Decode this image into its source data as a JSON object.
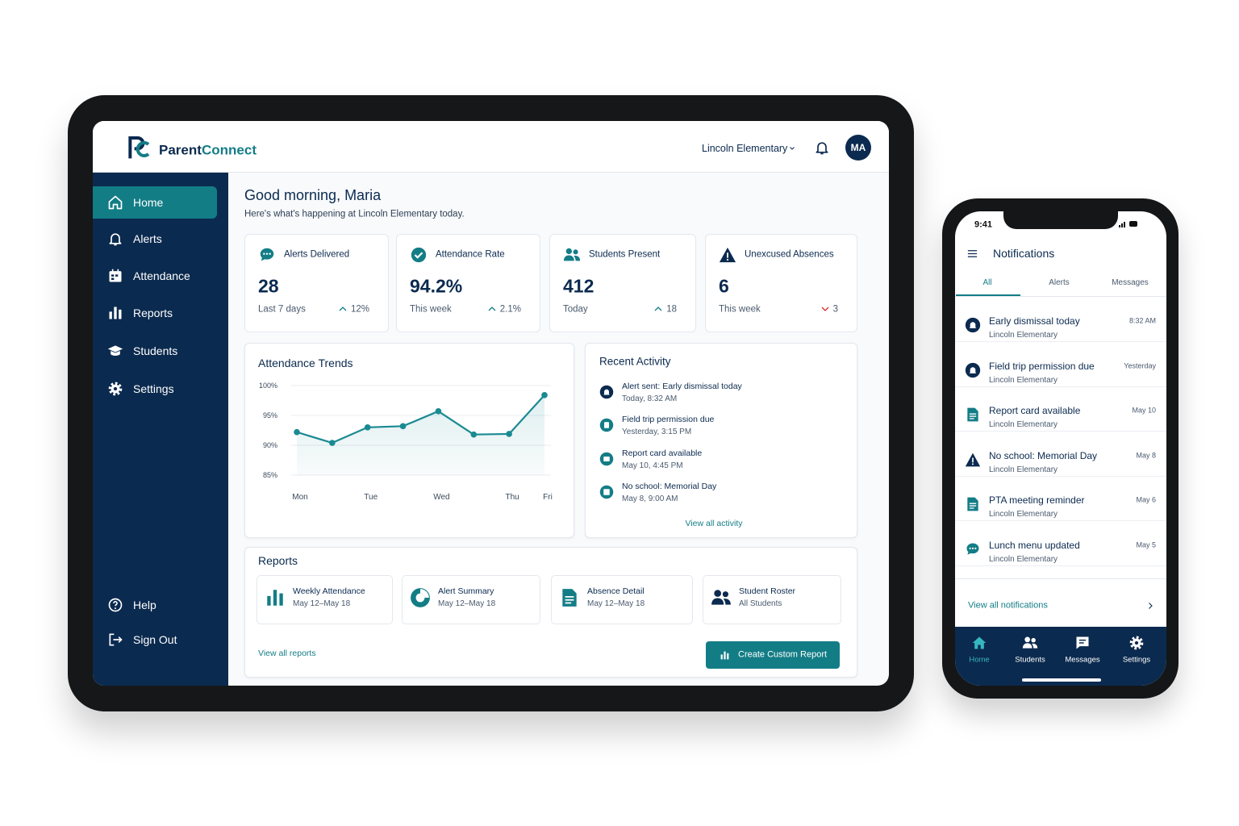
{
  "tablet": {
    "brand": {
      "first": "Parent",
      "second": "Connect"
    },
    "school_selector": "Lincoln Elementary",
    "avatar": "MA",
    "nav": [
      "Home",
      "Alerts",
      "Attendance",
      "Reports",
      "Students",
      "Settings"
    ],
    "nav_bottom": [
      "Help",
      "Sign Out"
    ],
    "greeting": "Good morning, Maria",
    "subtitle": "Here's what's happening at Lincoln Elementary today.",
    "stats": [
      {
        "label": "Alerts Delivered",
        "value": "28",
        "period": "Last 7 days",
        "change": "12%",
        "trend": "up"
      },
      {
        "label": "Attendance Rate",
        "value": "94.2%",
        "period": "This week",
        "change": "2.1%",
        "trend": "up"
      },
      {
        "label": "Students Present",
        "value": "412",
        "period": "Today",
        "change": "18",
        "trend": "up"
      },
      {
        "label": "Unexcused Absences",
        "value": "6",
        "period": "This week",
        "change": "3",
        "trend": "down"
      }
    ],
    "chart_data": {
      "type": "line",
      "title": "Attendance Trends",
      "categories": [
        "Mon",
        null,
        "Tue",
        null,
        "Wed",
        null,
        "Thu",
        "Fri"
      ],
      "values": [
        92.2,
        90.4,
        93.0,
        93.2,
        95.7,
        91.8,
        91.9,
        98.4
      ],
      "color": "#1a8a92",
      "ylim": [
        85,
        100
      ],
      "yticks": [
        {
          "value": 85,
          "label": "85%"
        },
        {
          "value": 90,
          "label": "90%"
        },
        {
          "value": 95,
          "label": "95%"
        },
        {
          "value": 100,
          "label": "100%"
        }
      ],
      "grid": true
    },
    "activity": {
      "title": "Recent Activity",
      "items": [
        {
          "title": "Alert sent: Early dismissal today",
          "time": "Today, 8:32 AM"
        },
        {
          "title": "Field trip permission due",
          "time": "Yesterday, 3:15 PM"
        },
        {
          "title": "Report card available",
          "time": "May 10, 4:45 PM"
        },
        {
          "title": "No school: Memorial Day",
          "time": "May 8, 9:00 AM"
        }
      ],
      "link": "View all activity"
    },
    "reports": {
      "title": "Reports",
      "items": [
        {
          "name": "Weekly Attendance",
          "detail": "May 12–May 18"
        },
        {
          "name": "Alert Summary",
          "detail": "May 12–May 18"
        },
        {
          "name": "Absence Detail",
          "detail": "May 12–May 18"
        },
        {
          "name": "Student Roster",
          "detail": "All Students"
        }
      ],
      "link": "View all reports",
      "button": "Create Custom Report"
    }
  },
  "phone": {
    "clock": "9:41",
    "title": "Notifications",
    "tabs": [
      "All",
      "Alerts",
      "Messages"
    ],
    "notifications": [
      {
        "title": "Early dismissal today",
        "source": "Lincoln Elementary",
        "time": "8:32 AM"
      },
      {
        "title": "Field trip permission due",
        "source": "Lincoln Elementary",
        "time": "Yesterday"
      },
      {
        "title": "Report card available",
        "source": "Lincoln Elementary",
        "time": "May 10"
      },
      {
        "title": "No school: Memorial Day",
        "source": "Lincoln Elementary",
        "time": "May 8"
      },
      {
        "title": "PTA meeting reminder",
        "source": "Lincoln Elementary",
        "time": "May 6"
      },
      {
        "title": "Lunch menu updated",
        "source": "Lincoln Elementary",
        "time": "May 5"
      }
    ],
    "link": "View all notifications",
    "bottom_nav": [
      "Home",
      "Students",
      "Messages",
      "Settings"
    ]
  }
}
